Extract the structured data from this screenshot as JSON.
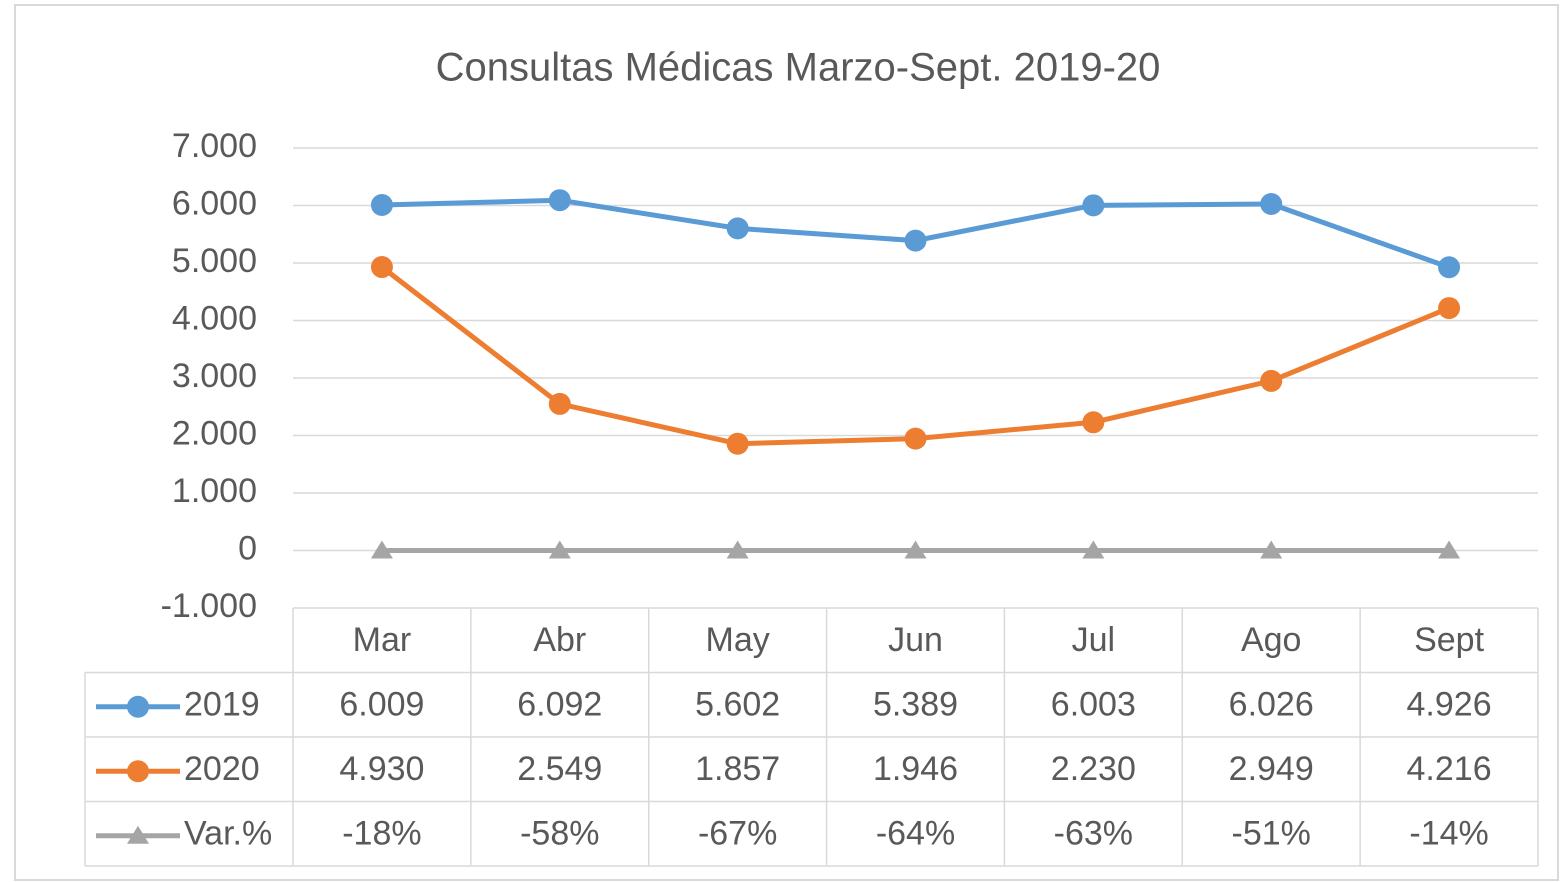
{
  "chart_data": {
    "type": "line",
    "title": "Consultas Médicas Marzo-Sept. 2019-20",
    "categories": [
      "Mar",
      "Abr",
      "May",
      "Jun",
      "Jul",
      "Ago",
      "Sept"
    ],
    "series": [
      {
        "name": "2019",
        "color": "#5b9bd5",
        "marker": "circle",
        "values": [
          6009,
          6092,
          5602,
          5389,
          6003,
          6026,
          4926
        ],
        "value_labels": [
          "6.009",
          "6.092",
          "5.602",
          "5.389",
          "6.003",
          "6.026",
          "4.926"
        ]
      },
      {
        "name": "2020",
        "color": "#ed7d31",
        "marker": "circle",
        "values": [
          4930,
          2549,
          1857,
          1946,
          2230,
          2949,
          4216
        ],
        "value_labels": [
          "4.930",
          "2.549",
          "1.857",
          "1.946",
          "2.230",
          "2.949",
          "4.216"
        ]
      },
      {
        "name": "Var.%",
        "color": "#a5a5a5",
        "marker": "triangle",
        "values": [
          -0.18,
          -0.58,
          -0.67,
          -0.64,
          -0.63,
          -0.51,
          -0.14
        ],
        "value_labels": [
          "-18%",
          "-58%",
          "-67%",
          "-64%",
          "-63%",
          "-51%",
          "-14%"
        ]
      }
    ],
    "ylim": [
      -1000,
      7000
    ],
    "yticks": [
      {
        "value": -1000,
        "label": "-1.000"
      },
      0,
      {
        "value": 1000,
        "label": "1.000"
      },
      {
        "value": 2000,
        "label": "2.000"
      },
      {
        "value": 3000,
        "label": "3.000"
      },
      {
        "value": 4000,
        "label": "4.000"
      },
      {
        "value": 5000,
        "label": "5.000"
      },
      {
        "value": 6000,
        "label": "6.000"
      },
      {
        "value": 7000,
        "label": "7.000"
      }
    ],
    "grid": true,
    "data_table": true
  }
}
